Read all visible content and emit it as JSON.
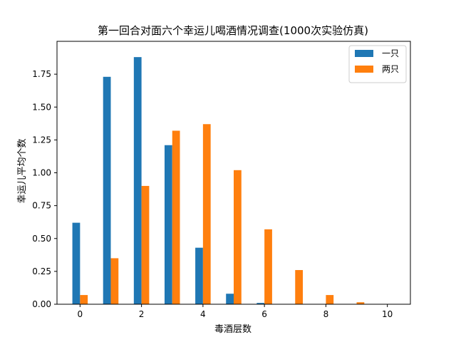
{
  "chart_data": {
    "type": "bar",
    "title": "第一回合对面六个幸运儿喝酒情况调查(1000次实验仿真)",
    "xlabel": "毒酒层数",
    "ylabel": "幸运儿平均个数",
    "x": [
      0,
      1,
      2,
      3,
      4,
      5,
      6,
      7,
      8,
      9,
      10
    ],
    "xticks": [
      "0",
      "2",
      "4",
      "6",
      "8",
      "10"
    ],
    "xlim": [
      -0.75,
      10.75
    ],
    "yticks": [
      "0.00",
      "0.25",
      "0.50",
      "0.75",
      "1.00",
      "1.25",
      "1.50",
      "1.75"
    ],
    "ylim": [
      0,
      2.0
    ],
    "grid": false,
    "legend_position": "upper-right",
    "series": [
      {
        "name": "一只",
        "color": "#1f77b4",
        "values": [
          0.62,
          1.73,
          1.88,
          1.21,
          0.43,
          0.08,
          0.01,
          0,
          0,
          0,
          0
        ]
      },
      {
        "name": "两只",
        "color": "#ff7f0e",
        "values": [
          0.07,
          0.35,
          0.9,
          1.32,
          1.37,
          1.02,
          0.57,
          0.26,
          0.07,
          0.015,
          0
        ]
      }
    ]
  }
}
